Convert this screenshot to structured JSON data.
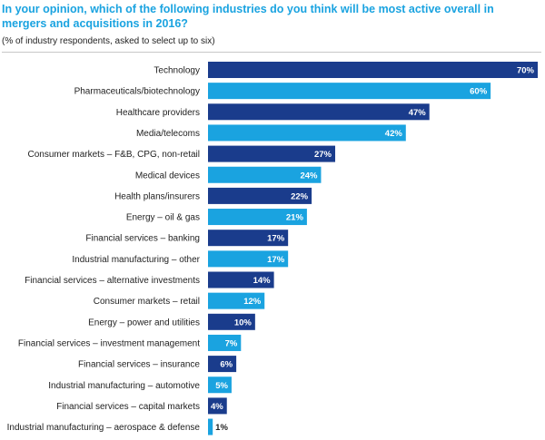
{
  "title": "In your opinion, which of the following industries do you think will be most active overall in mergers and acquisitions in 2016?",
  "subtitle": "(% of industry respondents, asked to select up to six)",
  "colors": {
    "dark": "#1a3c8c",
    "light": "#1aa3e0",
    "title": "#1aa3e0"
  },
  "chart_data": {
    "type": "bar",
    "orientation": "horizontal",
    "unit": "%",
    "xlim": [
      0,
      70
    ],
    "grid": false,
    "legend": "none",
    "categories": [
      "Technology",
      "Pharmaceuticals/biotechnology",
      "Healthcare providers",
      "Media/telecoms",
      "Consumer markets – F&B, CPG, non-retail",
      "Medical devices",
      "Health plans/insurers",
      "Energy – oil & gas",
      "Financial services – banking",
      "Industrial manufacturing – other",
      "Financial services –  alternative investments",
      "Consumer markets – retail",
      "Energy – power and utilities",
      "Financial services – investment management",
      "Financial services – insurance",
      "Industrial manufacturing – automotive",
      "Financial services – capital markets",
      "Industrial manufacturing – aerospace & defense"
    ],
    "values": [
      70,
      60,
      47,
      42,
      27,
      24,
      22,
      21,
      17,
      17,
      14,
      12,
      10,
      7,
      6,
      5,
      4,
      1
    ],
    "value_labels": [
      "70%",
      "60%",
      "47%",
      "42%",
      "27%",
      "24%",
      "22%",
      "21%",
      "17%",
      "17%",
      "14%",
      "12%",
      "10%",
      "7%",
      "6%",
      "5%",
      "4%",
      "1%"
    ]
  }
}
